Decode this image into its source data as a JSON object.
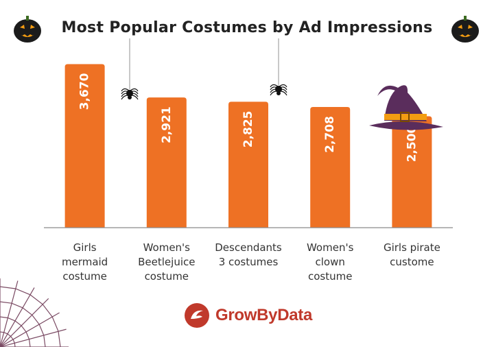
{
  "title": "Most Popular Costumes by Ad Impressions",
  "brand": "GrowByData",
  "colors": {
    "bar": "#ee7124",
    "bar_label": "#ffffff",
    "axis": "#8a8a8a",
    "text": "#333333",
    "brand": "#c0392b",
    "pumpkin": "#1b1b1b",
    "hat": "#5a2d5c",
    "hat_band": "#f39c12",
    "web": "#7a4a63"
  },
  "decorations": [
    "pumpkin-icon",
    "pumpkin-icon",
    "spider-icon",
    "spider-icon",
    "witch-hat-icon",
    "spider-web-icon",
    "growbydata-logo-icon"
  ],
  "chart_data": {
    "type": "bar",
    "title": "Most Popular Costumes by Ad Impressions",
    "categories": [
      [
        "Girls",
        "mermaid",
        "costume"
      ],
      [
        "Women's",
        "Beetlejuice",
        "costume"
      ],
      [
        "Descendants",
        "3 costumes"
      ],
      [
        "Women's",
        "clown",
        "costume"
      ],
      [
        "Girls pirate",
        "custome"
      ]
    ],
    "values": [
      3670,
      2921,
      2825,
      2708,
      2500
    ],
    "value_labels": [
      "3,670",
      "2,921",
      "2,825",
      "2,708",
      "2,500"
    ],
    "ylim": [
      0,
      3800
    ],
    "grid": false,
    "legend": "none"
  }
}
